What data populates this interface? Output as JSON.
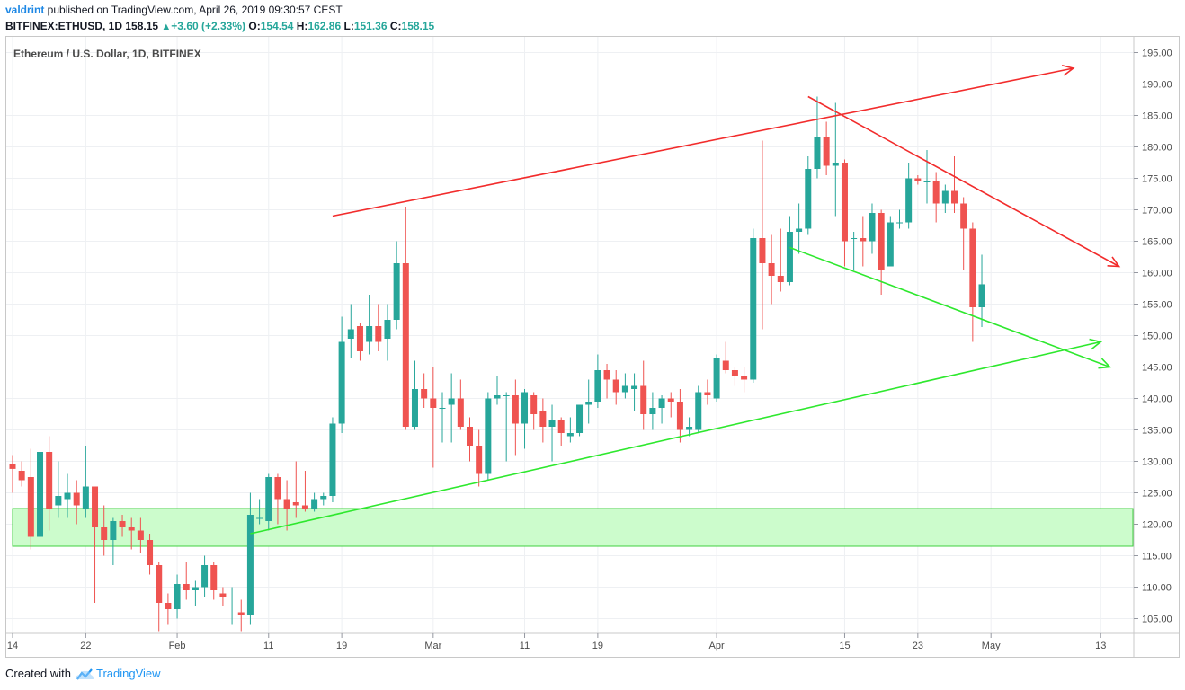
{
  "header": {
    "author": "valdrint",
    "published_text": " published on TradingView.com, April 26, 2019 09:30:57 CEST",
    "symbol": "BITFINEX:ETHUSD, 1D",
    "last": "158.15",
    "change_icon": "triangle-up-icon",
    "change": "+3.60 (+2.33%)",
    "o_label": "O:",
    "o_val": "154.54",
    "h_label": "H:",
    "h_val": "162.86",
    "l_label": "L:",
    "l_val": "151.36",
    "c_label": "C:",
    "c_val": "158.15"
  },
  "chart_title": "Ethereum / U.S. Dollar, 1D, BITFINEX",
  "footer": {
    "created_with": "Created with",
    "brand": "TradingView",
    "brand_icon": "tradingview-cloud-icon"
  },
  "colors": {
    "up": "#26a69a",
    "down": "#ef5350",
    "red_line": "#f22c2c",
    "green_line": "#2ee82e",
    "zone_fill": "#ccfccc",
    "zone_border": "#40d040",
    "grid": "#eef0f3"
  },
  "chart_data": {
    "type": "candlestick",
    "ylim": [
      102,
      197
    ],
    "yticks": [
      "195.00",
      "190.00",
      "185.00",
      "180.00",
      "175.00",
      "170.00",
      "165.00",
      "160.00",
      "155.00",
      "150.00",
      "145.00",
      "140.00",
      "135.00",
      "130.00",
      "125.00",
      "120.00",
      "115.00",
      "110.00",
      "105.00"
    ],
    "x_labels": [
      {
        "label": "14",
        "day": 0
      },
      {
        "label": "22",
        "day": 8
      },
      {
        "label": "Feb",
        "day": 18
      },
      {
        "label": "11",
        "day": 28
      },
      {
        "label": "19",
        "day": 36
      },
      {
        "label": "Mar",
        "day": 46
      },
      {
        "label": "11",
        "day": 56
      },
      {
        "label": "19",
        "day": 64
      },
      {
        "label": "Apr",
        "day": 77
      },
      {
        "label": "15",
        "day": 91
      },
      {
        "label": "23",
        "day": 99
      },
      {
        "label": "May",
        "day": 107
      },
      {
        "label": "13",
        "day": 119
      }
    ],
    "candles": [
      {
        "o": 129.5,
        "h": 131,
        "l": 125,
        "c": 128.8
      },
      {
        "o": 128.5,
        "h": 130,
        "l": 126,
        "c": 127
      },
      {
        "o": 127.5,
        "h": 132,
        "l": 116,
        "c": 118
      },
      {
        "o": 118,
        "h": 134.5,
        "l": 118,
        "c": 131.5
      },
      {
        "o": 131.5,
        "h": 134,
        "l": 119,
        "c": 122.5
      },
      {
        "o": 123,
        "h": 130,
        "l": 121,
        "c": 124.5
      },
      {
        "o": 124,
        "h": 128,
        "l": 121,
        "c": 125
      },
      {
        "o": 125,
        "h": 127,
        "l": 120,
        "c": 123
      },
      {
        "o": 122.5,
        "h": 132.5,
        "l": 121,
        "c": 126
      },
      {
        "o": 126,
        "h": 126,
        "l": 107.5,
        "c": 119.5
      },
      {
        "o": 119.5,
        "h": 123,
        "l": 115,
        "c": 117.5
      },
      {
        "o": 117.5,
        "h": 121,
        "l": 113.5,
        "c": 120.5
      },
      {
        "o": 120.5,
        "h": 121.5,
        "l": 118,
        "c": 119.5
      },
      {
        "o": 119.5,
        "h": 121,
        "l": 116,
        "c": 119
      },
      {
        "o": 119,
        "h": 121,
        "l": 115.5,
        "c": 117.5
      },
      {
        "o": 117.5,
        "h": 118.5,
        "l": 112,
        "c": 113.5
      },
      {
        "o": 113.5,
        "h": 114,
        "l": 103,
        "c": 107.5
      },
      {
        "o": 107.5,
        "h": 109,
        "l": 104,
        "c": 106.5
      },
      {
        "o": 106.5,
        "h": 112,
        "l": 105,
        "c": 110.5
      },
      {
        "o": 110.5,
        "h": 114,
        "l": 108,
        "c": 109.5
      },
      {
        "o": 109.5,
        "h": 111,
        "l": 107,
        "c": 110
      },
      {
        "o": 110,
        "h": 115,
        "l": 108.5,
        "c": 113.5
      },
      {
        "o": 113.5,
        "h": 114,
        "l": 108,
        "c": 109.5
      },
      {
        "o": 109,
        "h": 110,
        "l": 107,
        "c": 108.5
      },
      {
        "o": 108.5,
        "h": 110,
        "l": 104,
        "c": 108.5
      },
      {
        "o": 106,
        "h": 108,
        "l": 103,
        "c": 105.5
      },
      {
        "o": 105.5,
        "h": 125,
        "l": 104,
        "c": 121.5
      },
      {
        "o": 121,
        "h": 124,
        "l": 120,
        "c": 121
      },
      {
        "o": 120.5,
        "h": 128,
        "l": 119,
        "c": 127.5
      },
      {
        "o": 127.5,
        "h": 128,
        "l": 120,
        "c": 124
      },
      {
        "o": 124,
        "h": 127,
        "l": 119,
        "c": 122.5
      },
      {
        "o": 123.5,
        "h": 130,
        "l": 121,
        "c": 123
      },
      {
        "o": 123,
        "h": 128.5,
        "l": 122,
        "c": 122.5
      },
      {
        "o": 122.5,
        "h": 125,
        "l": 122,
        "c": 124
      },
      {
        "o": 124,
        "h": 125,
        "l": 123,
        "c": 124.5
      },
      {
        "o": 124.5,
        "h": 137,
        "l": 123.5,
        "c": 136
      },
      {
        "o": 136,
        "h": 153,
        "l": 134.5,
        "c": 149
      },
      {
        "o": 149.5,
        "h": 155,
        "l": 146.5,
        "c": 151
      },
      {
        "o": 151.5,
        "h": 152,
        "l": 146,
        "c": 147.5
      },
      {
        "o": 149,
        "h": 156.5,
        "l": 147,
        "c": 151.5
      },
      {
        "o": 151.5,
        "h": 155,
        "l": 147.5,
        "c": 149
      },
      {
        "o": 149.5,
        "h": 155,
        "l": 146,
        "c": 152.5
      },
      {
        "o": 152.5,
        "h": 165,
        "l": 151,
        "c": 161.5
      },
      {
        "o": 161.5,
        "h": 170.5,
        "l": 135,
        "c": 135.5
      },
      {
        "o": 135.5,
        "h": 146,
        "l": 135,
        "c": 141.5
      },
      {
        "o": 141.5,
        "h": 144,
        "l": 138.5,
        "c": 140
      },
      {
        "o": 140,
        "h": 145,
        "l": 129,
        "c": 138.5
      },
      {
        "o": 138.5,
        "h": 141,
        "l": 133,
        "c": 138.5
      },
      {
        "o": 139,
        "h": 144,
        "l": 133,
        "c": 140
      },
      {
        "o": 140,
        "h": 143,
        "l": 135,
        "c": 135.5
      },
      {
        "o": 135.5,
        "h": 137,
        "l": 130,
        "c": 132.5
      },
      {
        "o": 132.5,
        "h": 135,
        "l": 126,
        "c": 128
      },
      {
        "o": 128,
        "h": 141,
        "l": 127,
        "c": 140
      },
      {
        "o": 140,
        "h": 143.5,
        "l": 139,
        "c": 140.5
      },
      {
        "o": 140.5,
        "h": 141,
        "l": 130,
        "c": 140.5
      },
      {
        "o": 140.5,
        "h": 143,
        "l": 131,
        "c": 136
      },
      {
        "o": 136,
        "h": 141.5,
        "l": 132,
        "c": 141
      },
      {
        "o": 140.5,
        "h": 141,
        "l": 135,
        "c": 137.5
      },
      {
        "o": 138,
        "h": 140,
        "l": 133,
        "c": 135.5
      },
      {
        "o": 135.5,
        "h": 139,
        "l": 130,
        "c": 136.5
      },
      {
        "o": 136.5,
        "h": 137,
        "l": 132.5,
        "c": 134.5
      },
      {
        "o": 134,
        "h": 137,
        "l": 133,
        "c": 134.5
      },
      {
        "o": 134.5,
        "h": 139,
        "l": 134,
        "c": 139
      },
      {
        "o": 139,
        "h": 143,
        "l": 136,
        "c": 139.5
      },
      {
        "o": 139.5,
        "h": 147,
        "l": 138.5,
        "c": 144.5
      },
      {
        "o": 144.5,
        "h": 145.5,
        "l": 140,
        "c": 143
      },
      {
        "o": 143,
        "h": 144.5,
        "l": 139,
        "c": 141
      },
      {
        "o": 141,
        "h": 144,
        "l": 140,
        "c": 142
      },
      {
        "o": 141.5,
        "h": 144,
        "l": 138,
        "c": 142
      },
      {
        "o": 142,
        "h": 146,
        "l": 135,
        "c": 137.5
      },
      {
        "o": 137.5,
        "h": 141,
        "l": 135,
        "c": 138.5
      },
      {
        "o": 138.5,
        "h": 140.5,
        "l": 136,
        "c": 140
      },
      {
        "o": 140,
        "h": 141,
        "l": 137,
        "c": 139.5
      },
      {
        "o": 139.5,
        "h": 141.5,
        "l": 133,
        "c": 135
      },
      {
        "o": 135,
        "h": 137,
        "l": 134,
        "c": 135.5
      },
      {
        "o": 135,
        "h": 142,
        "l": 134.5,
        "c": 141
      },
      {
        "o": 141,
        "h": 143,
        "l": 139,
        "c": 140.5
      },
      {
        "o": 140,
        "h": 147,
        "l": 139.5,
        "c": 146.5
      },
      {
        "o": 146,
        "h": 149,
        "l": 144,
        "c": 144.5
      },
      {
        "o": 144.5,
        "h": 145,
        "l": 142,
        "c": 143.5
      },
      {
        "o": 143.5,
        "h": 145,
        "l": 141,
        "c": 143
      },
      {
        "o": 143,
        "h": 167,
        "l": 142.5,
        "c": 165.5
      },
      {
        "o": 165.5,
        "h": 181,
        "l": 151,
        "c": 161.5
      },
      {
        "o": 161.5,
        "h": 166,
        "l": 155,
        "c": 159.5
      },
      {
        "o": 159.5,
        "h": 167,
        "l": 157,
        "c": 158.5
      },
      {
        "o": 158.5,
        "h": 169,
        "l": 158,
        "c": 166.5
      },
      {
        "o": 166.5,
        "h": 171,
        "l": 163,
        "c": 167
      },
      {
        "o": 167,
        "h": 178.5,
        "l": 166,
        "c": 176.5
      },
      {
        "o": 176.5,
        "h": 188,
        "l": 175,
        "c": 181.5
      },
      {
        "o": 181.5,
        "h": 184,
        "l": 175.5,
        "c": 177
      },
      {
        "o": 177,
        "h": 187,
        "l": 169,
        "c": 177.5
      },
      {
        "o": 177.5,
        "h": 178,
        "l": 161,
        "c": 165
      },
      {
        "o": 165.5,
        "h": 166.5,
        "l": 160.5,
        "c": 165.5
      },
      {
        "o": 165.5,
        "h": 169,
        "l": 161,
        "c": 165
      },
      {
        "o": 165,
        "h": 171,
        "l": 163,
        "c": 169.5
      },
      {
        "o": 169.5,
        "h": 170,
        "l": 156.5,
        "c": 160.5
      },
      {
        "o": 161,
        "h": 169,
        "l": 161,
        "c": 168
      },
      {
        "o": 168,
        "h": 170,
        "l": 167,
        "c": 168
      },
      {
        "o": 168,
        "h": 177.5,
        "l": 167,
        "c": 175
      },
      {
        "o": 175,
        "h": 175.5,
        "l": 174,
        "c": 174.5
      },
      {
        "o": 174.5,
        "h": 179.5,
        "l": 171,
        "c": 174.5
      },
      {
        "o": 174.5,
        "h": 176,
        "l": 168,
        "c": 171
      },
      {
        "o": 171,
        "h": 174,
        "l": 169.5,
        "c": 173
      },
      {
        "o": 173,
        "h": 178.5,
        "l": 169.5,
        "c": 171
      },
      {
        "o": 171,
        "h": 172,
        "l": 160.5,
        "c": 167
      },
      {
        "o": 167,
        "h": 168,
        "l": 149,
        "c": 154.5
      },
      {
        "o": 154.5,
        "h": 162.86,
        "l": 151.36,
        "c": 158.15
      }
    ],
    "drawings": {
      "support_zone": [
        116.5,
        122.5
      ],
      "red_upper_line": {
        "from": {
          "day": 35,
          "price": 169
        },
        "to": {
          "day": 116,
          "price": 192.5
        }
      },
      "red_down_line": {
        "from": {
          "day": 87,
          "price": 188
        },
        "to": {
          "day": 121,
          "price": 161
        }
      },
      "green_up_line": {
        "from": {
          "day": 26,
          "price": 118.5
        },
        "to": {
          "day": 119,
          "price": 149
        }
      },
      "green_down_line": {
        "from": {
          "day": 85,
          "price": 164
        },
        "to": {
          "day": 120,
          "price": 145
        }
      }
    }
  }
}
